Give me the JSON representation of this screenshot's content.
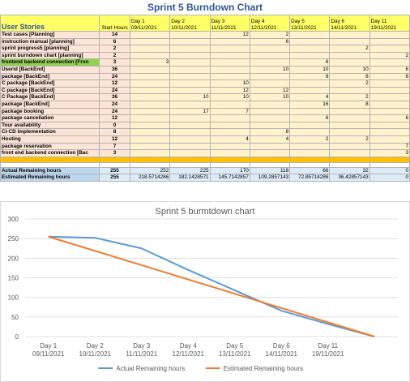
{
  "table": {
    "title": "Sprint 5 Burndown Chart",
    "header": [
      "User Stories",
      "Start Hours",
      "Day 1\n09/11/2021",
      "Day 2\n10/11/2021",
      "Day 3\n11/11/2021",
      "Day 4\n12/11/2021",
      "Day 5\n13/11/2021",
      "Day 6\n14/11/2021",
      "Day 11\n19/11/2021"
    ],
    "rows": [
      [
        "Test cases  [Planning]",
        14,
        null,
        null,
        12,
        2,
        null,
        null,
        null
      ],
      [
        "instruction manual [planning]",
        6,
        null,
        null,
        null,
        6,
        null,
        null,
        null
      ],
      [
        "sprint progress5 [planning]",
        2,
        null,
        null,
        null,
        null,
        null,
        2,
        null
      ],
      [
        "sprint burndown chart  [planning]",
        2,
        null,
        null,
        null,
        null,
        null,
        null,
        2
      ],
      [
        "frontend backend connection  [Fron",
        3,
        3,
        null,
        null,
        null,
        6,
        null,
        null
      ],
      [
        "Userid  [BackEnd]",
        36,
        null,
        null,
        null,
        10,
        10,
        10,
        6
      ],
      [
        "package [BackEnd]",
        24,
        null,
        null,
        null,
        null,
        8,
        8,
        8
      ],
      [
        "C package [BackEnd]",
        12,
        null,
        null,
        10,
        null,
        null,
        2,
        null
      ],
      [
        "C package [BackEnd]",
        24,
        null,
        null,
        12,
        12,
        null,
        null,
        null
      ],
      [
        "C Package [BackEnd]",
        36,
        null,
        10,
        10,
        10,
        4,
        2,
        null
      ],
      [
        "package  [BackEnd]",
        24,
        null,
        null,
        null,
        null,
        16,
        8,
        null
      ],
      [
        "package booking",
        24,
        null,
        17,
        7,
        null,
        null,
        null,
        null
      ],
      [
        "package cancellation",
        12,
        null,
        null,
        null,
        null,
        6,
        null,
        6
      ],
      [
        "Tour availability",
        0,
        null,
        null,
        null,
        null,
        null,
        null,
        null
      ],
      [
        "CI-CD implementation",
        8,
        null,
        null,
        null,
        8,
        null,
        null,
        null
      ],
      [
        "Hosting",
        12,
        null,
        null,
        4,
        4,
        2,
        2,
        null
      ],
      [
        "package reservation",
        7,
        null,
        null,
        null,
        null,
        null,
        null,
        7
      ],
      [
        "front end backend connection  [Bac",
        3,
        null,
        null,
        null,
        null,
        null,
        null,
        3
      ]
    ],
    "footer": [
      [
        "Actual Remaining hours",
        255,
        252,
        225,
        170,
        118,
        66,
        32,
        0
      ],
      [
        "Estimated Remaining hours",
        255,
        218.5714286,
        182.1428571,
        145.7142857,
        109.2857143,
        72.85714286,
        36.42857143,
        0
      ]
    ]
  },
  "chart_data": {
    "type": "line",
    "title": "Sprint 5 burmtdown chart",
    "categories": [
      "Day 1\n09/11/2021",
      "Day 2\n10/11/2021",
      "Day 3\n11/11/2021",
      "Day 4\n12/11/2021",
      "Day 5\n13/11/2021",
      "Day 6\n14/11/2021",
      "Day 11\n19/11/2021",
      null
    ],
    "series": [
      {
        "name": "Actual Remaining hours",
        "color": "#5b9bd5",
        "values": [
          255,
          252,
          225,
          170,
          118,
          66,
          32,
          0
        ]
      },
      {
        "name": "Estimated Remaining hours",
        "color": "#ed7d31",
        "values": [
          255,
          218.5714286,
          182.1428571,
          145.7142857,
          109.2857143,
          72.85714286,
          36.42857143,
          0
        ]
      }
    ],
    "ylim": [
      0,
      300
    ],
    "yticks": [
      0,
      50,
      100,
      150,
      200,
      250,
      300
    ],
    "grid": true,
    "legend": "bottom"
  }
}
